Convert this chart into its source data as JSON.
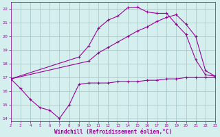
{
  "xlabel": "Windchill (Refroidissement éolien,°C)",
  "xlim": [
    2,
    23
  ],
  "ylim": [
    13.8,
    22.5
  ],
  "xticks": [
    2,
    3,
    4,
    5,
    6,
    7,
    8,
    9,
    10,
    11,
    12,
    13,
    14,
    15,
    16,
    17,
    18,
    19,
    20,
    21,
    22,
    23
  ],
  "yticks": [
    14,
    15,
    16,
    17,
    18,
    19,
    20,
    21,
    22
  ],
  "bg_color": "#d5efef",
  "line_color": "#990099",
  "grid_color": "#aacccc",
  "line1_x": [
    2,
    3,
    4,
    5,
    6,
    7,
    8,
    9,
    10,
    11,
    12,
    13,
    14,
    15,
    16,
    17,
    18,
    19,
    20,
    21,
    22,
    23
  ],
  "line1_y": [
    16.9,
    16.2,
    15.4,
    14.8,
    14.6,
    14.0,
    15.0,
    16.5,
    16.6,
    16.6,
    16.6,
    16.7,
    16.7,
    16.7,
    16.8,
    16.8,
    16.9,
    16.9,
    17.0,
    17.0,
    17.0,
    17.0
  ],
  "line2_x": [
    2,
    9,
    10,
    11,
    12,
    13,
    14,
    15,
    16,
    17,
    18,
    19,
    20,
    21,
    22,
    23
  ],
  "line2_y": [
    16.9,
    18.5,
    19.3,
    20.6,
    21.2,
    21.5,
    22.1,
    22.15,
    21.8,
    21.7,
    21.7,
    20.9,
    20.15,
    18.3,
    17.2,
    17.1
  ],
  "line3_x": [
    2,
    10,
    11,
    12,
    13,
    14,
    15,
    16,
    17,
    18,
    19,
    20,
    21,
    22,
    23
  ],
  "line3_y": [
    16.9,
    18.2,
    18.8,
    19.2,
    19.6,
    20.0,
    20.4,
    20.7,
    21.1,
    21.4,
    21.6,
    20.9,
    20.0,
    17.5,
    17.1
  ]
}
